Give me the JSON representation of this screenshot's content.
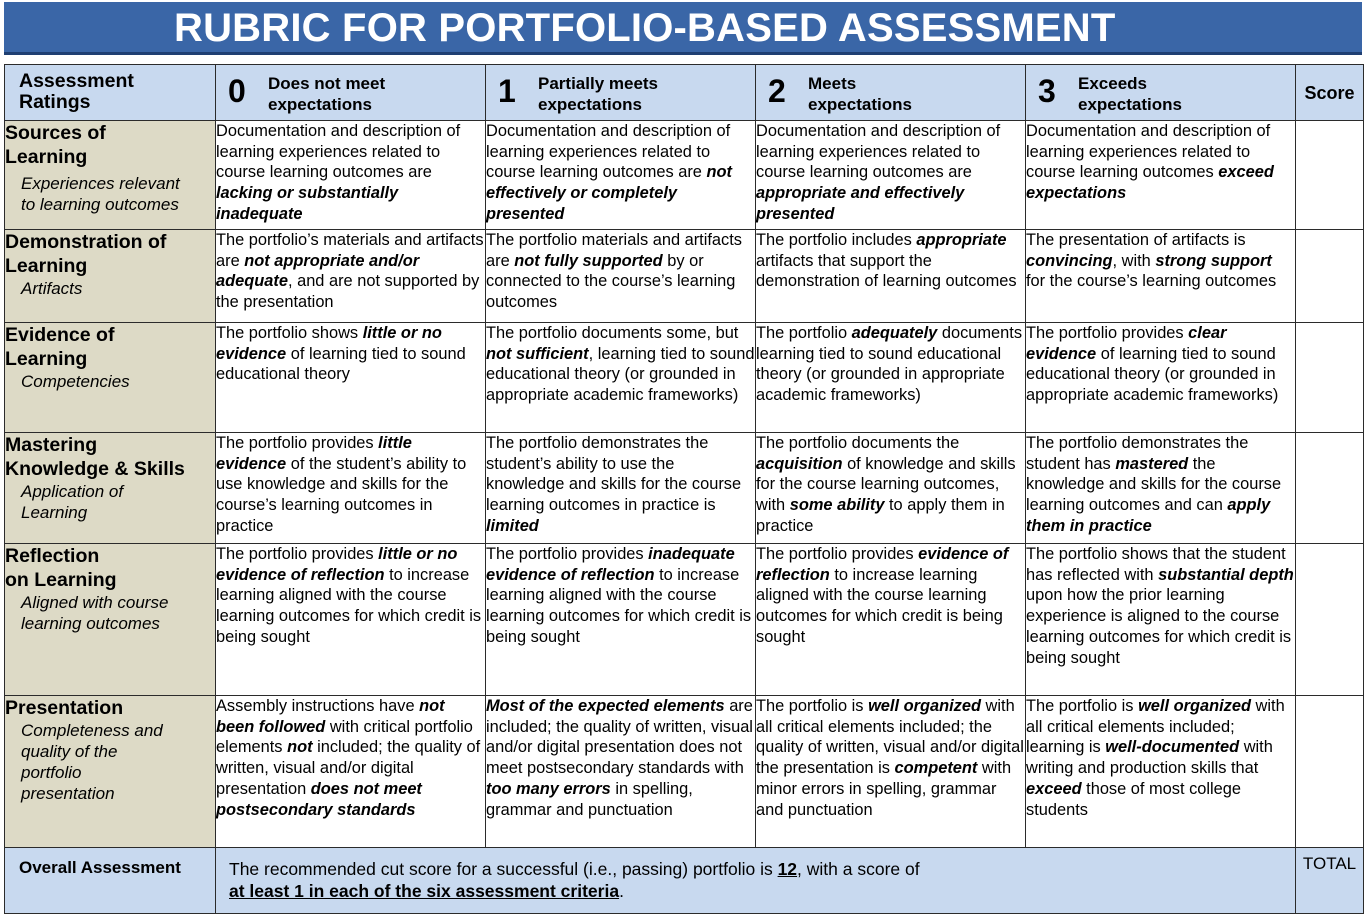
{
  "title": "RUBRIC FOR PORTFOLIO-BASED ASSESSMENT",
  "header": {
    "ratings_label_1": "Assessment",
    "ratings_label_2": "Ratings",
    "levels": [
      {
        "num": "0",
        "label_1": "Does not meet",
        "label_2": "expectations"
      },
      {
        "num": "1",
        "label_1": "Partially meets",
        "label_2": "expectations"
      },
      {
        "num": "2",
        "label_1": "Meets",
        "label_2": "expectations"
      },
      {
        "num": "3",
        "label_1": "Exceeds",
        "label_2": "expectations"
      }
    ],
    "score_label": "Score"
  },
  "criteria": [
    {
      "title_1": "Sources of",
      "title_2": "Learning",
      "sub_1": "Experiences relevant",
      "sub_2": "to learning outcomes",
      "cells": [
        [
          "Documentation and description of learning experiences related to course learning outcomes are ",
          "lacking or substantially inadequate",
          ""
        ],
        [
          "Documentation and description of learning experiences related to course learning outcomes are ",
          "not effectively or completely presented",
          ""
        ],
        [
          "Documentation and description of learning experiences related to course learning outcomes are ",
          "appropriate and effectively presented",
          ""
        ],
        [
          "Documentation and description of learning experiences related to course learning outcomes ",
          "exceed expectations",
          ""
        ]
      ]
    },
    {
      "title_1": "Demonstration of",
      "title_2": "Learning",
      "sub_1": "Artifacts",
      "sub_2": "",
      "cells": [
        [
          "The portfolio’s materials and artifacts are ",
          "not appropriate and/or adequate",
          ", and are not supported by the presentation"
        ],
        [
          "The portfolio materials and artifacts are ",
          "not fully supported",
          " by or connected to the course’s learning outcomes"
        ],
        [
          "The portfolio includes ",
          "appropriate",
          " artifacts that support the demonstration of learning outcomes"
        ],
        [
          "The presentation of artifacts is ",
          "convincing",
          ", with ",
          "strong support",
          " for the course’s learning outcomes"
        ]
      ]
    },
    {
      "title_1": "Evidence of",
      "title_2": "Learning",
      "sub_1": "Competencies",
      "sub_2": "",
      "cells": [
        [
          "The portfolio shows ",
          "little or no evidence",
          " of learning tied to sound educational theory"
        ],
        [
          "The portfolio documents some, but ",
          "not sufficient",
          ", learning tied to sound educational theory (or grounded in appropriate academic frameworks)"
        ],
        [
          "The portfolio ",
          "adequately",
          " documents learning tied to sound educational theory (or grounded in appropriate academic frameworks)"
        ],
        [
          "The portfolio provides ",
          "clear evidence",
          " of learning tied to sound educational theory (or grounded in appropriate academic frameworks)"
        ]
      ]
    },
    {
      "title_1": "Mastering",
      "title_2": "Knowledge & Skills",
      "sub_1": "Application of",
      "sub_2": "Learning",
      "cells": [
        [
          "The portfolio provides ",
          "little evidence",
          " of the student’s ability to use knowledge and skills for the course’s learning outcomes in practice"
        ],
        [
          "The portfolio demonstrates the student’s ability to use the knowledge and skills for the course learning outcomes in practice is ",
          "limited",
          ""
        ],
        [
          "The portfolio documents the ",
          "acquisition",
          " of knowledge and skills for the course learning outcomes, with ",
          "some ability",
          " to apply them in practice"
        ],
        [
          "The portfolio demonstrates the student has ",
          "mastered",
          " the knowledge and skills for the course learning outcomes and can ",
          "apply them in practice",
          ""
        ]
      ]
    },
    {
      "title_1": "Reflection",
      "title_2": "on Learning",
      "sub_1": "Aligned with course",
      "sub_2": "learning outcomes",
      "cells": [
        [
          "The portfolio provides ",
          "little or no evidence of reflection",
          " to increase learning aligned with the course learning outcomes for which credit is being sought"
        ],
        [
          "The portfolio provides ",
          "inadequate evidence of reflection",
          " to increase learning aligned with the course learning outcomes for which credit is being sought"
        ],
        [
          "The portfolio provides ",
          "evidence of reflection",
          " to increase learning aligned with the course learning outcomes for which credit is being sought"
        ],
        [
          "The portfolio shows that the student has reflected with ",
          "substantial depth",
          " upon how the prior learning experience is aligned to the course learning outcomes for which credit is being sought"
        ]
      ]
    },
    {
      "title_1": "Presentation",
      "title_2": "",
      "sub_1": "Completeness and quality of the portfolio presentation",
      "sub_2": "",
      "cells": [
        [
          "Assembly instructions have ",
          "not been followed",
          " with critical portfolio elements ",
          "not",
          " included; the quality of written, visual and/or digital presentation ",
          "does not meet postsecondary standards",
          ""
        ],
        [
          "",
          "Most of the expected elements",
          " are included; the quality of written, visual and/or digital presentation does not meet postsecondary standards with ",
          "too many errors",
          " in spelling, grammar and punctuation"
        ],
        [
          "The portfolio is ",
          "well organized",
          " with all critical elements included; the quality of written, visual and/or digital the presentation is ",
          "competent",
          " with minor errors in spelling, grammar and punctuation"
        ],
        [
          "The portfolio is ",
          "well organized",
          " with all critical elements included; learning is ",
          "well-documented",
          " with writing and production skills that ",
          "exceed",
          " those of most college students"
        ]
      ]
    }
  ],
  "footer": {
    "label": "Overall Assessment",
    "text_1": "The recommended cut score for a successful (i.e., passing) portfolio is ",
    "cut_score": "12",
    "text_2": ", with a score of",
    "text_3": "at least 1 in each of the six assessment criteria",
    "text_4": ".",
    "total_label": "TOTAL"
  }
}
